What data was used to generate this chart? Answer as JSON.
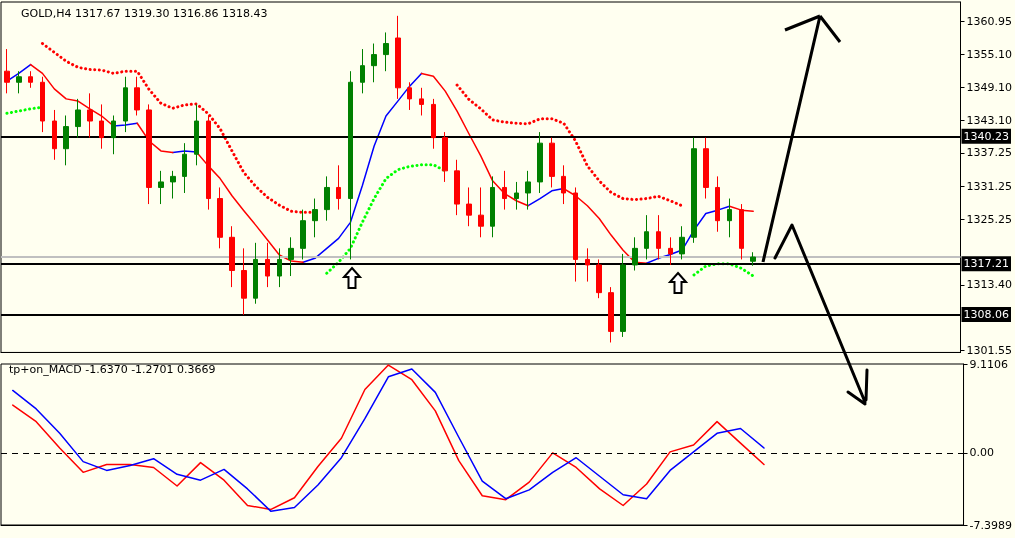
{
  "chart_data": [
    {
      "type": "candlestick",
      "title": "GOLD,H4 1317.67 1319.30 1316.86 1318.43",
      "tick_labels": "y",
      "categories": [
        null,
        null,
        null,
        null,
        null,
        null,
        null,
        null,
        null,
        null,
        null,
        null,
        null,
        null,
        null,
        null,
        null,
        null,
        null,
        null,
        null,
        null,
        null,
        null,
        null,
        null,
        null,
        null,
        null,
        null,
        null,
        null,
        null,
        null,
        null,
        null,
        null,
        null,
        null,
        null,
        null,
        null,
        null,
        null,
        null,
        null,
        null,
        null,
        null,
        null,
        null,
        null,
        null,
        null,
        null,
        null,
        null,
        null,
        null,
        null,
        null,
        null,
        null,
        null,
        null,
        null,
        null,
        null,
        null,
        null,
        null,
        null,
        null,
        null,
        null,
        null,
        null,
        null,
        null,
        null,
        null
      ],
      "ohlc": [
        [
          1352,
          1356,
          1348,
          1350
        ],
        [
          1350,
          1352,
          1348,
          1351
        ],
        [
          1351,
          1352,
          1349,
          1350
        ],
        [
          1350,
          1351,
          1341,
          1343
        ],
        [
          1343,
          1345,
          1336,
          1338
        ],
        [
          1338,
          1344,
          1335,
          1342
        ],
        [
          1342,
          1347,
          1340,
          1345
        ],
        [
          1345,
          1348,
          1340,
          1343
        ],
        [
          1343,
          1346,
          1338,
          1340
        ],
        [
          1340,
          1344,
          1337,
          1343
        ],
        [
          1343,
          1351,
          1341,
          1349
        ],
        [
          1349,
          1351,
          1344,
          1345
        ],
        [
          1345,
          1346,
          1328,
          1331
        ],
        [
          1331,
          1334,
          1328,
          1332
        ],
        [
          1332,
          1334,
          1329,
          1333
        ],
        [
          1333,
          1339,
          1330,
          1337
        ],
        [
          1337,
          1346,
          1335,
          1343
        ],
        [
          1343,
          1344,
          1327,
          1329
        ],
        [
          1329,
          1331,
          1320,
          1322
        ],
        [
          1322,
          1324,
          1313,
          1316
        ],
        [
          1316,
          1320,
          1308,
          1311
        ],
        [
          1311,
          1321,
          1310,
          1318
        ],
        [
          1318,
          1321,
          1313,
          1315
        ],
        [
          1315,
          1320,
          1313,
          1318
        ],
        [
          1318,
          1322,
          1315,
          1320
        ],
        [
          1320,
          1327,
          1318,
          1325
        ],
        [
          1325,
          1329,
          1322,
          1327
        ],
        [
          1327,
          1333,
          1325,
          1331
        ],
        [
          1331,
          1335,
          1327,
          1329
        ],
        [
          1329,
          1352,
          1318,
          1350
        ],
        [
          1350,
          1356,
          1348,
          1353
        ],
        [
          1353,
          1357,
          1350,
          1355
        ],
        [
          1355,
          1359,
          1352,
          1357
        ],
        [
          1358,
          1362,
          1347,
          1349
        ],
        [
          1349,
          1350,
          1345,
          1347
        ],
        [
          1347,
          1349,
          1344,
          1346
        ],
        [
          1346,
          1347,
          1338,
          1340
        ],
        [
          1340,
          1341,
          1332,
          1334
        ],
        [
          1334,
          1336,
          1326,
          1328
        ],
        [
          1328,
          1331,
          1324,
          1326
        ],
        [
          1326,
          1331,
          1322,
          1324
        ],
        [
          1324,
          1333,
          1322,
          1331
        ],
        [
          1331,
          1334,
          1327,
          1329
        ],
        [
          1329,
          1332,
          1327,
          1330
        ],
        [
          1330,
          1334,
          1327,
          1332
        ],
        [
          1332,
          1341,
          1330,
          1339
        ],
        [
          1339,
          1340,
          1331,
          1333
        ],
        [
          1333,
          1335,
          1328,
          1330
        ],
        [
          1330,
          1331,
          1314,
          1318
        ],
        [
          1318,
          1320,
          1314,
          1317
        ],
        [
          1317,
          1318,
          1311,
          1312
        ],
        [
          1312,
          1313,
          1303,
          1305
        ],
        [
          1305,
          1319,
          1304,
          1317
        ],
        [
          1317,
          1322,
          1316,
          1320
        ],
        [
          1320,
          1326,
          1318,
          1323
        ],
        [
          1323,
          1326,
          1318,
          1320
        ],
        [
          1320,
          1322,
          1317,
          1319
        ],
        [
          1319,
          1324,
          1318,
          1322
        ],
        [
          1322,
          1340,
          1321,
          1338
        ],
        [
          1338,
          1340,
          1329,
          1331
        ],
        [
          1331,
          1333,
          1323,
          1325
        ],
        [
          1325,
          1329,
          1322,
          1327
        ],
        [
          1327,
          1328,
          1318,
          1320
        ],
        [
          1317.67,
          1319.3,
          1316.86,
          1318.43
        ],
        null,
        null,
        null,
        null,
        null,
        null,
        null,
        null,
        null,
        null,
        null,
        null,
        null,
        null,
        null,
        null,
        null
      ],
      "colors": [
        "#ff0000",
        "#008000",
        "#ff0000",
        "#ff0000",
        "#ff0000",
        "#008000",
        "#008000",
        "#ff0000",
        "#ff0000",
        "#008000",
        "#008000",
        "#ff0000",
        "#ff0000",
        "#008000",
        "#008000",
        "#008000",
        "#008000",
        "#ff0000",
        "#ff0000",
        "#ff0000",
        "#ff0000",
        "#008000",
        "#ff0000",
        "#008000",
        "#008000",
        "#008000",
        "#008000",
        "#008000",
        "#ff0000",
        "#008000",
        "#008000",
        "#008000",
        "#008000",
        "#ff0000",
        "#ff0000",
        "#ff0000",
        "#ff0000",
        "#ff0000",
        "#ff0000",
        "#ff0000",
        "#ff0000",
        "#008000",
        "#ff0000",
        "#008000",
        "#008000",
        "#008000",
        "#ff0000",
        "#ff0000",
        "#ff0000",
        "#ff0000",
        "#ff0000",
        "#ff0000",
        "#008000",
        "#008000",
        "#008000",
        "#ff0000",
        "#ff0000",
        "#008000",
        "#008000",
        "#ff0000",
        "#ff0000",
        "#008000",
        "#ff0000",
        "#008000",
        null,
        null,
        null,
        null,
        null,
        null,
        null,
        null,
        null,
        null,
        null,
        null,
        null,
        null,
        null,
        null,
        null
      ],
      "series": [
        {
          "type": "line",
          "color": "#0000ff",
          "values": [
            1350.2,
            1351.6,
            1353.2,
            null,
            null,
            null,
            null,
            null,
            null,
            1342.1,
            1342.3,
            1342.6,
            null,
            null,
            1337.3,
            1337.6,
            1337.4,
            null,
            null,
            null,
            null,
            null,
            null,
            null,
            null,
            1317.5,
            1318.2,
            1320.0,
            1321.8,
            1324.7,
            1331.3,
            1338.5,
            1343.9,
            1346.6,
            1349.3,
            1351.6,
            null,
            null,
            null,
            null,
            null,
            null,
            null,
            null,
            1327.7,
            1329.0,
            1330.4,
            1330.8,
            null,
            null,
            null,
            null,
            null,
            null,
            1317.3,
            1318.2,
            1318.9,
            1319.7,
            1323.3,
            1326.3,
            1326.9,
            1327.6,
            null,
            null,
            null,
            null,
            null,
            null,
            null,
            null,
            null,
            null,
            null,
            null,
            null,
            null,
            null,
            null,
            null,
            null,
            null
          ]
        },
        {
          "type": "line",
          "color": "#ff0000",
          "values": [
            null,
            null,
            1353.2,
            1351.6,
            1348.8,
            1347.0,
            1346.6,
            1345.2,
            1343.9,
            1342.1,
            null,
            1342.6,
            1339.4,
            1337.6,
            1337.3,
            null,
            1337.4,
            1334.9,
            1332.6,
            1329.5,
            1326.8,
            1324.2,
            1321.5,
            1318.8,
            1317.7,
            1317.5,
            null,
            null,
            null,
            null,
            null,
            null,
            null,
            null,
            null,
            1351.6,
            1351.1,
            1348.4,
            1344.8,
            1340.7,
            1336.7,
            1332.2,
            1329.9,
            1328.6,
            1327.7,
            null,
            null,
            1330.8,
            1329.5,
            1327.7,
            1325.4,
            1322.4,
            1319.7,
            1317.5,
            1317.3,
            null,
            null,
            null,
            null,
            null,
            null,
            1327.6,
            1326.9,
            1326.7,
            null,
            null,
            null,
            null,
            null,
            null,
            null,
            null,
            null,
            null,
            null,
            null,
            null,
            null,
            null,
            null,
            null
          ]
        },
        {
          "type": "line",
          "color": "#ff0000",
          "line_style": "dotted",
          "values": [
            null,
            null,
            null,
            1357.0,
            1355.4,
            1353.8,
            1352.7,
            1352.3,
            1352.2,
            1351.6,
            1352.0,
            1352.0,
            1348.7,
            1346.2,
            1345.3,
            1345.9,
            1346.1,
            1344.3,
            1341.6,
            1337.6,
            1333.7,
            1331.2,
            1329.2,
            1327.8,
            1326.7,
            1326.5,
            1326.5,
            null,
            null,
            null,
            null,
            null,
            null,
            null,
            null,
            null,
            null,
            null,
            1349.5,
            1346.9,
            1345.2,
            1343.2,
            1342.8,
            1342.6,
            1342.5,
            1343.4,
            1343.4,
            1342.6,
            1339.4,
            1334.9,
            1332.2,
            1330.1,
            1329.0,
            1328.8,
            1329.0,
            1329.4,
            1328.6,
            1327.7,
            null,
            null,
            null,
            null,
            null,
            null,
            null,
            null,
            null,
            null,
            null,
            null,
            null,
            null,
            null,
            null,
            null,
            null,
            null,
            null,
            null,
            null,
            null
          ]
        },
        {
          "type": "line",
          "color": "#00ff00",
          "line_style": "dotted",
          "values": [
            1344.4,
            1344.8,
            1345.2,
            1345.5,
            null,
            null,
            null,
            null,
            null,
            null,
            null,
            null,
            null,
            null,
            null,
            null,
            null,
            null,
            null,
            null,
            null,
            null,
            null,
            null,
            null,
            null,
            null,
            1315.5,
            1317.5,
            1320.0,
            1324.7,
            1329.0,
            1332.6,
            1334.2,
            1334.8,
            1335.1,
            1335.1,
            1334.0,
            null,
            null,
            null,
            null,
            null,
            null,
            null,
            null,
            null,
            null,
            null,
            null,
            null,
            null,
            null,
            null,
            null,
            null,
            null,
            null,
            1315.2,
            1316.8,
            1317.2,
            1317.2,
            1316.4,
            1315.0,
            null,
            null,
            null,
            null,
            null,
            null,
            null,
            null,
            null,
            null,
            null,
            null,
            null,
            null,
            null,
            null,
            null
          ]
        }
      ],
      "ylim": [
        1301.2,
        1364.5
      ],
      "yticks": [
        1360.95,
        {
          "value": 1355.1,
          "label": "1355.10"
        },
        {
          "value": 1349.1,
          "label": "1349.10"
        },
        {
          "value": 1343.1,
          "label": "1343.10"
        },
        1337.25,
        1331.25,
        1325.25,
        {
          "value": 1313.4,
          "label": "1313.40"
        },
        1301.55
      ],
      "ref_lines": [
        {
          "axis": "y",
          "value": 1340.23,
          "label": "1340.23",
          "color": "#000000"
        },
        {
          "axis": "y",
          "value": 1318.43,
          "label": null,
          "color": "#c0c0c0"
        },
        {
          "axis": "y",
          "value": 1317.21,
          "label": "1317.21",
          "color": "#000000"
        },
        {
          "axis": "y",
          "value": 1308.06,
          "label": "1308.06",
          "color": "#000000"
        }
      ]
    },
    {
      "type": "line",
      "title": "tp+on_MACD -1.6370 -1.2701 0.3669",
      "tick_labels": "y",
      "categories": [
        null,
        null,
        null,
        null,
        null,
        null,
        null,
        null,
        null,
        null,
        null,
        null,
        null,
        null,
        null,
        null,
        null,
        null,
        null,
        null,
        null,
        null,
        null,
        null,
        null,
        null,
        null,
        null,
        null,
        null,
        null,
        null,
        null,
        null,
        null,
        null,
        null,
        null,
        null,
        null,
        null
      ],
      "series": [
        {
          "color": "#ff0000",
          "values": [
            4.9,
            3.2,
            0.5,
            -2.0,
            -1.2,
            -1.2,
            -1.5,
            -3.4,
            -1.0,
            -2.8,
            -5.4,
            -5.8,
            -4.6,
            -1.4,
            1.5,
            6.5,
            9.0,
            7.5,
            4.3,
            -0.8,
            -4.4,
            -4.8,
            -3.0,
            0.0,
            -1.5,
            -3.7,
            -5.4,
            -3.2,
            0.1,
            0.8,
            3.2,
            1.0,
            -1.2,
            null,
            null,
            null,
            null,
            null,
            null,
            null,
            null
          ]
        },
        {
          "color": "#0000ff",
          "values": [
            6.4,
            4.5,
            2.0,
            -0.9,
            -1.8,
            -1.3,
            -0.6,
            -2.2,
            -2.8,
            -1.7,
            -3.7,
            -6.0,
            -5.6,
            -3.3,
            -0.5,
            3.5,
            7.8,
            8.6,
            6.2,
            1.6,
            -2.9,
            -4.7,
            -3.8,
            -2.0,
            -0.5,
            -2.4,
            -4.3,
            -4.7,
            -1.8,
            0.1,
            2.0,
            2.5,
            0.5,
            null,
            null,
            null,
            null,
            null,
            null,
            null,
            null
          ]
        }
      ],
      "ylim": [
        -7.3989,
        9.1106
      ],
      "yticks": [
        {
          "value": 9.1106,
          "label": "9.1106"
        },
        {
          "value": 0,
          "label": "0.00"
        },
        {
          "value": -7.3989,
          "label": "-7.3989"
        }
      ],
      "ref_lines": [
        {
          "axis": "y",
          "value": 0,
          "label": null,
          "color": "#000000",
          "line_style": "dashed"
        }
      ]
    }
  ]
}
